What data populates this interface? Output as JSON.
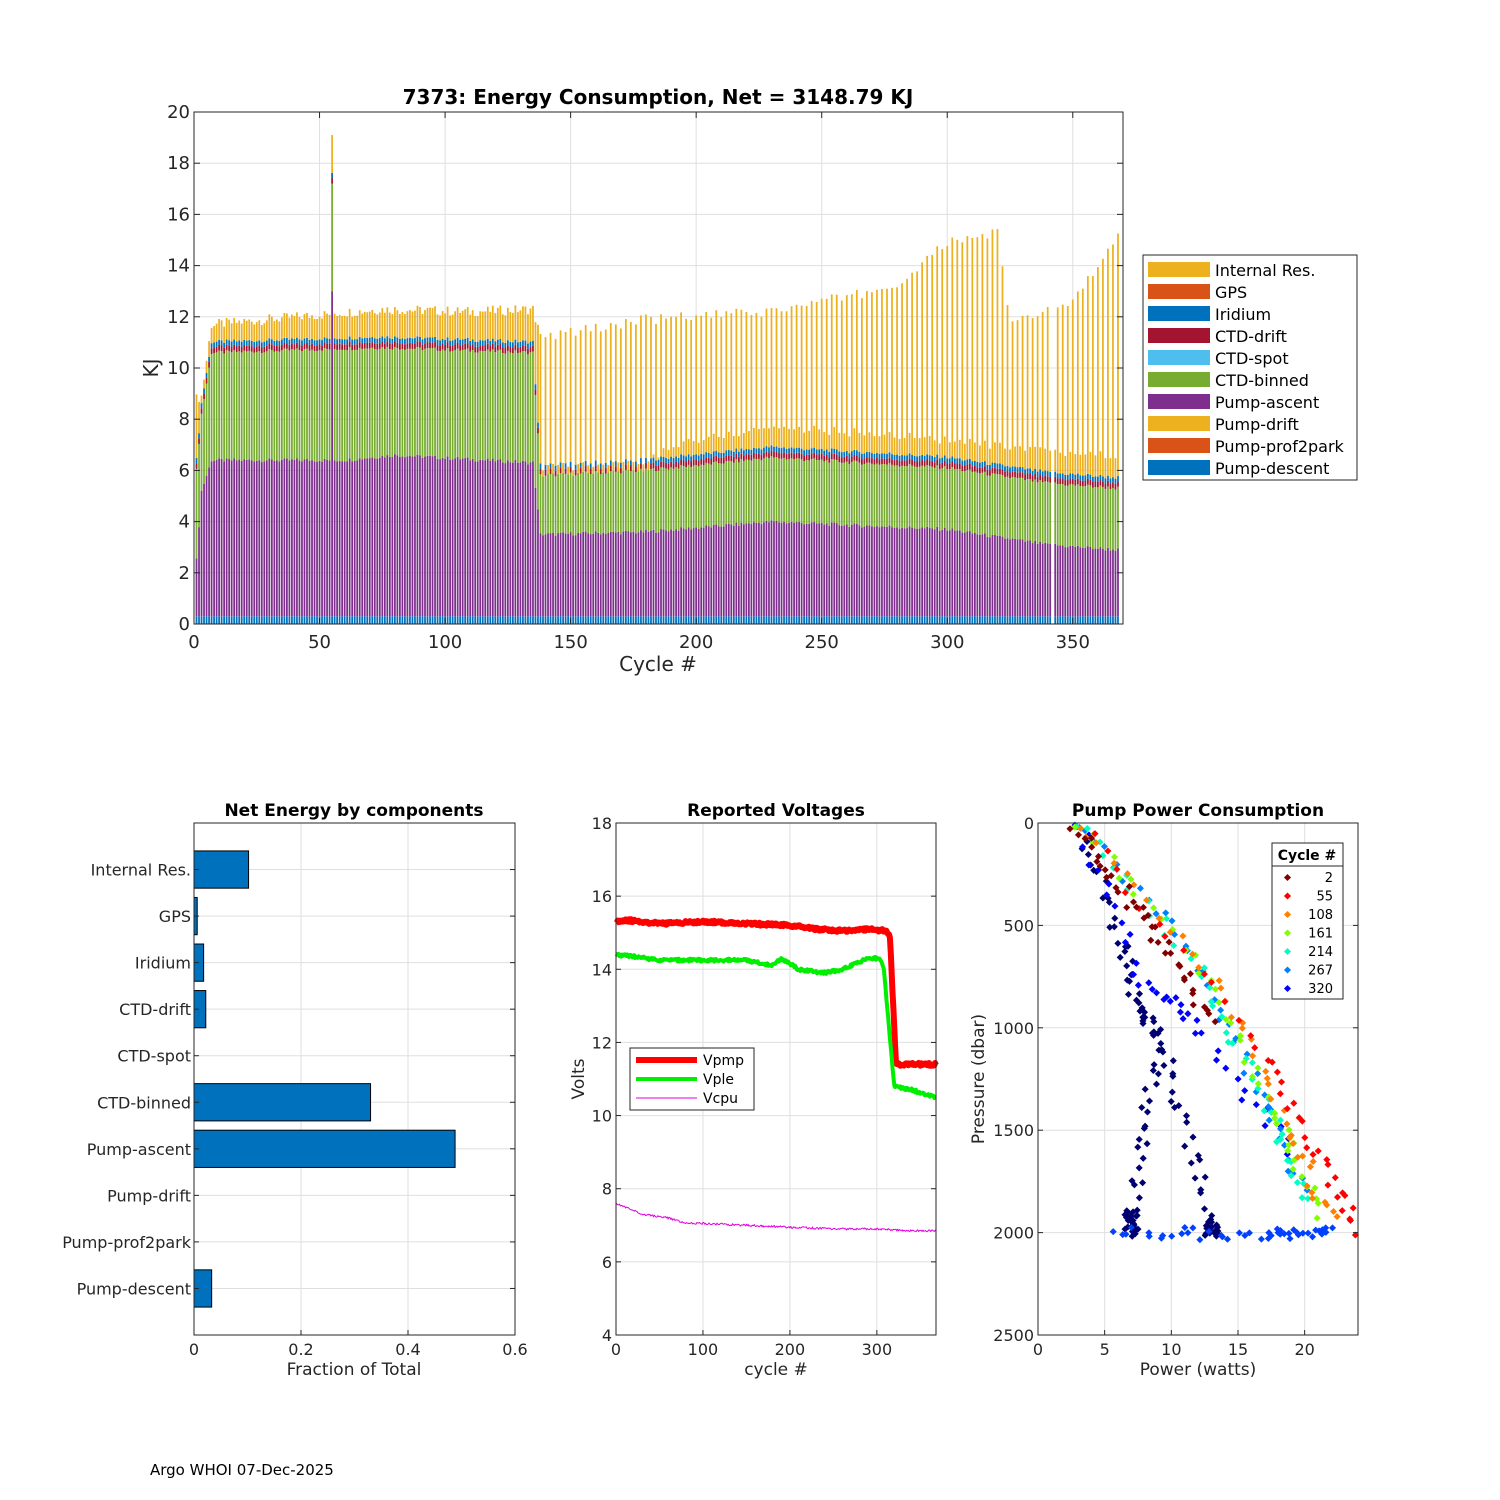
{
  "footer": "Argo WHOI 07-Dec-2025",
  "chart_data": [
    {
      "type": "stacked-bar",
      "title": "7373: Energy Consumption,  Net = 3148.79 KJ",
      "xlabel": "Cycle #",
      "ylabel": "KJ",
      "xlim": [
        0,
        370
      ],
      "ylim": [
        0,
        20
      ],
      "xticks": [
        0,
        50,
        100,
        150,
        200,
        250,
        300,
        350
      ],
      "yticks": [
        0,
        2,
        4,
        6,
        8,
        10,
        12,
        14,
        16,
        18,
        20
      ],
      "grid": true,
      "legend_position": "outside-right",
      "note": "Per-cycle stack heights for cycles 1-368 are approximated by the piecewise-linear profiles below (cycle, KJ); odd cycles after 137 show only the Pump-ascent + CTD-binned base.",
      "legend": [
        {
          "name": "Internal Res.",
          "color": "#EDB120"
        },
        {
          "name": "GPS",
          "color": "#D95319"
        },
        {
          "name": "Iridium",
          "color": "#0072BD"
        },
        {
          "name": "CTD-drift",
          "color": "#A2142F"
        },
        {
          "name": "CTD-spot",
          "color": "#4DBEEE"
        },
        {
          "name": "CTD-binned",
          "color": "#77AC30"
        },
        {
          "name": "Pump-ascent",
          "color": "#7E2F8E"
        },
        {
          "name": "Pump-drift",
          "color": "#EDB120"
        },
        {
          "name": "Pump-prof2park",
          "color": "#D95319"
        },
        {
          "name": "Pump-descent",
          "color": "#0072BD"
        }
      ],
      "components": {
        "pump_descent": [
          [
            0,
            0.3
          ],
          [
            370,
            0.3
          ]
        ],
        "pump_ascent_top": [
          [
            1,
            2.5
          ],
          [
            3,
            5.2
          ],
          [
            7,
            6.4
          ],
          [
            60,
            6.4
          ],
          [
            80,
            6.6
          ],
          [
            135,
            6.3
          ],
          [
            138,
            3.5
          ],
          [
            180,
            3.6
          ],
          [
            230,
            4.0
          ],
          [
            300,
            3.7
          ],
          [
            340,
            3.1
          ],
          [
            368,
            2.9
          ]
        ],
        "ctd_binned_top": [
          [
            1,
            6.0
          ],
          [
            3,
            8.2
          ],
          [
            7,
            10.6
          ],
          [
            75,
            10.8
          ],
          [
            135,
            10.6
          ],
          [
            138,
            5.8
          ],
          [
            180,
            6.0
          ],
          [
            230,
            6.5
          ],
          [
            300,
            6.1
          ],
          [
            340,
            5.5
          ],
          [
            368,
            5.3
          ]
        ],
        "net_top_even_cycles": [
          [
            1,
            8.8
          ],
          [
            3,
            8.9
          ],
          [
            7,
            11.7
          ],
          [
            75,
            12.3
          ],
          [
            110,
            12.2
          ],
          [
            135,
            12.3
          ],
          [
            138,
            11.2
          ],
          [
            180,
            11.9
          ],
          [
            230,
            12.2
          ],
          [
            280,
            13.2
          ],
          [
            300,
            14.9
          ],
          [
            320,
            15.3
          ],
          [
            325,
            11.7
          ],
          [
            350,
            12.6
          ],
          [
            368,
            15.1
          ]
        ],
        "net_top_odd_cycles_after_137": [
          [
            138,
            6.1
          ],
          [
            180,
            6.3
          ],
          [
            190,
            7.0
          ],
          [
            230,
            7.7
          ],
          [
            290,
            7.3
          ],
          [
            340,
            6.7
          ],
          [
            368,
            6.6
          ]
        ],
        "spike": {
          "cycle": 55,
          "net": 19.1,
          "ctd_binned_top": 17.2,
          "pump_ascent_top": 13.0
        },
        "gap_cycle": 342
      }
    },
    {
      "type": "bar",
      "orientation": "horizontal",
      "title": "Net Energy by components",
      "xlabel": "Fraction of Total",
      "xlim": [
        0,
        0.6
      ],
      "xticks": [
        0,
        0.2,
        0.4,
        0.6
      ],
      "categories": [
        "Internal Res.",
        "GPS",
        "Iridium",
        "CTD-drift",
        "CTD-spot",
        "CTD-binned",
        "Pump-ascent",
        "Pump-drift",
        "Pump-prof2park",
        "Pump-descent"
      ],
      "values": [
        0.102,
        0.006,
        0.018,
        0.022,
        0.0,
        0.33,
        0.488,
        0.0,
        0.0,
        0.033
      ],
      "color": "#0072BD",
      "grid": true
    },
    {
      "type": "line",
      "title": "Reported Voltages",
      "xlabel": "cycle #",
      "ylabel": "Volts",
      "xlim": [
        0,
        368
      ],
      "ylim": [
        4,
        18
      ],
      "xticks": [
        0,
        100,
        200,
        300
      ],
      "yticks": [
        4,
        6,
        8,
        10,
        12,
        14,
        16,
        18
      ],
      "grid": true,
      "legend_position": "middle-left",
      "series": [
        {
          "name": "Vpmp",
          "color": "#FF0000",
          "width": 6,
          "points": [
            [
              0,
              15.3
            ],
            [
              10,
              15.35
            ],
            [
              50,
              15.25
            ],
            [
              100,
              15.3
            ],
            [
              150,
              15.25
            ],
            [
              200,
              15.2
            ],
            [
              230,
              15.1
            ],
            [
              260,
              15.05
            ],
            [
              290,
              15.1
            ],
            [
              310,
              15.05
            ],
            [
              315,
              14.9
            ],
            [
              322,
              11.4
            ],
            [
              368,
              11.4
            ]
          ]
        },
        {
          "name": "Vple",
          "color": "#00EE00",
          "width": 4,
          "points": [
            [
              0,
              14.4
            ],
            [
              20,
              14.35
            ],
            [
              50,
              14.25
            ],
            [
              100,
              14.25
            ],
            [
              150,
              14.25
            ],
            [
              180,
              14.1
            ],
            [
              190,
              14.3
            ],
            [
              210,
              14.0
            ],
            [
              240,
              13.9
            ],
            [
              260,
              14.0
            ],
            [
              290,
              14.3
            ],
            [
              303,
              14.3
            ],
            [
              308,
              14.0
            ],
            [
              320,
              10.8
            ],
            [
              340,
              10.7
            ],
            [
              368,
              10.5
            ]
          ]
        },
        {
          "name": "Vcpu",
          "color": "#E000E0",
          "width": 1,
          "points": [
            [
              0,
              7.6
            ],
            [
              10,
              7.5
            ],
            [
              30,
              7.3
            ],
            [
              60,
              7.2
            ],
            [
              80,
              7.05
            ],
            [
              100,
              7.05
            ],
            [
              150,
              7.0
            ],
            [
              200,
              6.95
            ],
            [
              250,
              6.9
            ],
            [
              300,
              6.9
            ],
            [
              340,
              6.85
            ],
            [
              368,
              6.85
            ]
          ]
        }
      ]
    },
    {
      "type": "scatter",
      "title": "Pump Power Consumption",
      "xlabel": "Power (watts)",
      "ylabel": "Pressure (dbar)",
      "xlim": [
        0,
        24
      ],
      "ylim": [
        0,
        2500
      ],
      "y_reversed": true,
      "xticks": [
        0,
        5,
        10,
        15,
        20
      ],
      "yticks": [
        0,
        500,
        1000,
        1500,
        2000,
        2500
      ],
      "grid": true,
      "legend_title": "Cycle #",
      "legend_position": "top-right",
      "series": [
        {
          "name": "2",
          "color": "#800000",
          "path": [
            [
              2.5,
              0
            ],
            [
              8,
              470
            ],
            [
              13,
              960
            ]
          ]
        },
        {
          "name": "55",
          "color": "#FF0000",
          "path": [
            [
              3,
              0
            ],
            [
              16,
              1050
            ],
            [
              21,
              1600
            ],
            [
              24,
              2000
            ]
          ]
        },
        {
          "name": "108",
          "color": "#FF8000",
          "path": [
            [
              3,
              0
            ],
            [
              14,
              820
            ],
            [
              19,
              1500
            ],
            [
              22,
              1950
            ]
          ]
        },
        {
          "name": "161",
          "color": "#80FF00",
          "path": [
            [
              3,
              0
            ],
            [
              13,
              780
            ],
            [
              18,
              1450
            ],
            [
              21,
              1900
            ]
          ]
        },
        {
          "name": "214",
          "color": "#00FFC0",
          "path": [
            [
              3,
              0
            ],
            [
              12,
              700
            ],
            [
              17,
              1350
            ],
            [
              20,
              1850
            ]
          ]
        },
        {
          "name": "267",
          "color": "#0080FF",
          "path": [
            [
              3,
              0
            ],
            [
              11,
              600
            ],
            [
              16,
              1250
            ],
            [
              20,
              1800
            ]
          ]
        },
        {
          "name": "320",
          "color": "#0000FF",
          "path": [
            [
              3,
              0
            ],
            [
              8,
              780
            ],
            [
              12,
              1000
            ],
            [
              19,
              1600
            ]
          ]
        }
      ],
      "extra_clusters": [
        {
          "color": "#000070",
          "path": [
            [
              3,
              0
            ],
            [
              6,
              550
            ],
            [
              7.5,
              900
            ],
            [
              9,
              1050
            ]
          ]
        },
        {
          "color": "#000070",
          "path": [
            [
              9,
              1100
            ],
            [
              7,
              1900
            ],
            [
              7,
              2000
            ]
          ]
        },
        {
          "color": "#000070",
          "path": [
            [
              9.5,
              1100
            ],
            [
              13,
              1950
            ],
            [
              13,
              2000
            ]
          ]
        },
        {
          "color": "#0040FF",
          "path": [
            [
              6,
              2000
            ],
            [
              17,
              2010
            ],
            [
              22,
              2000
            ]
          ]
        }
      ]
    }
  ]
}
